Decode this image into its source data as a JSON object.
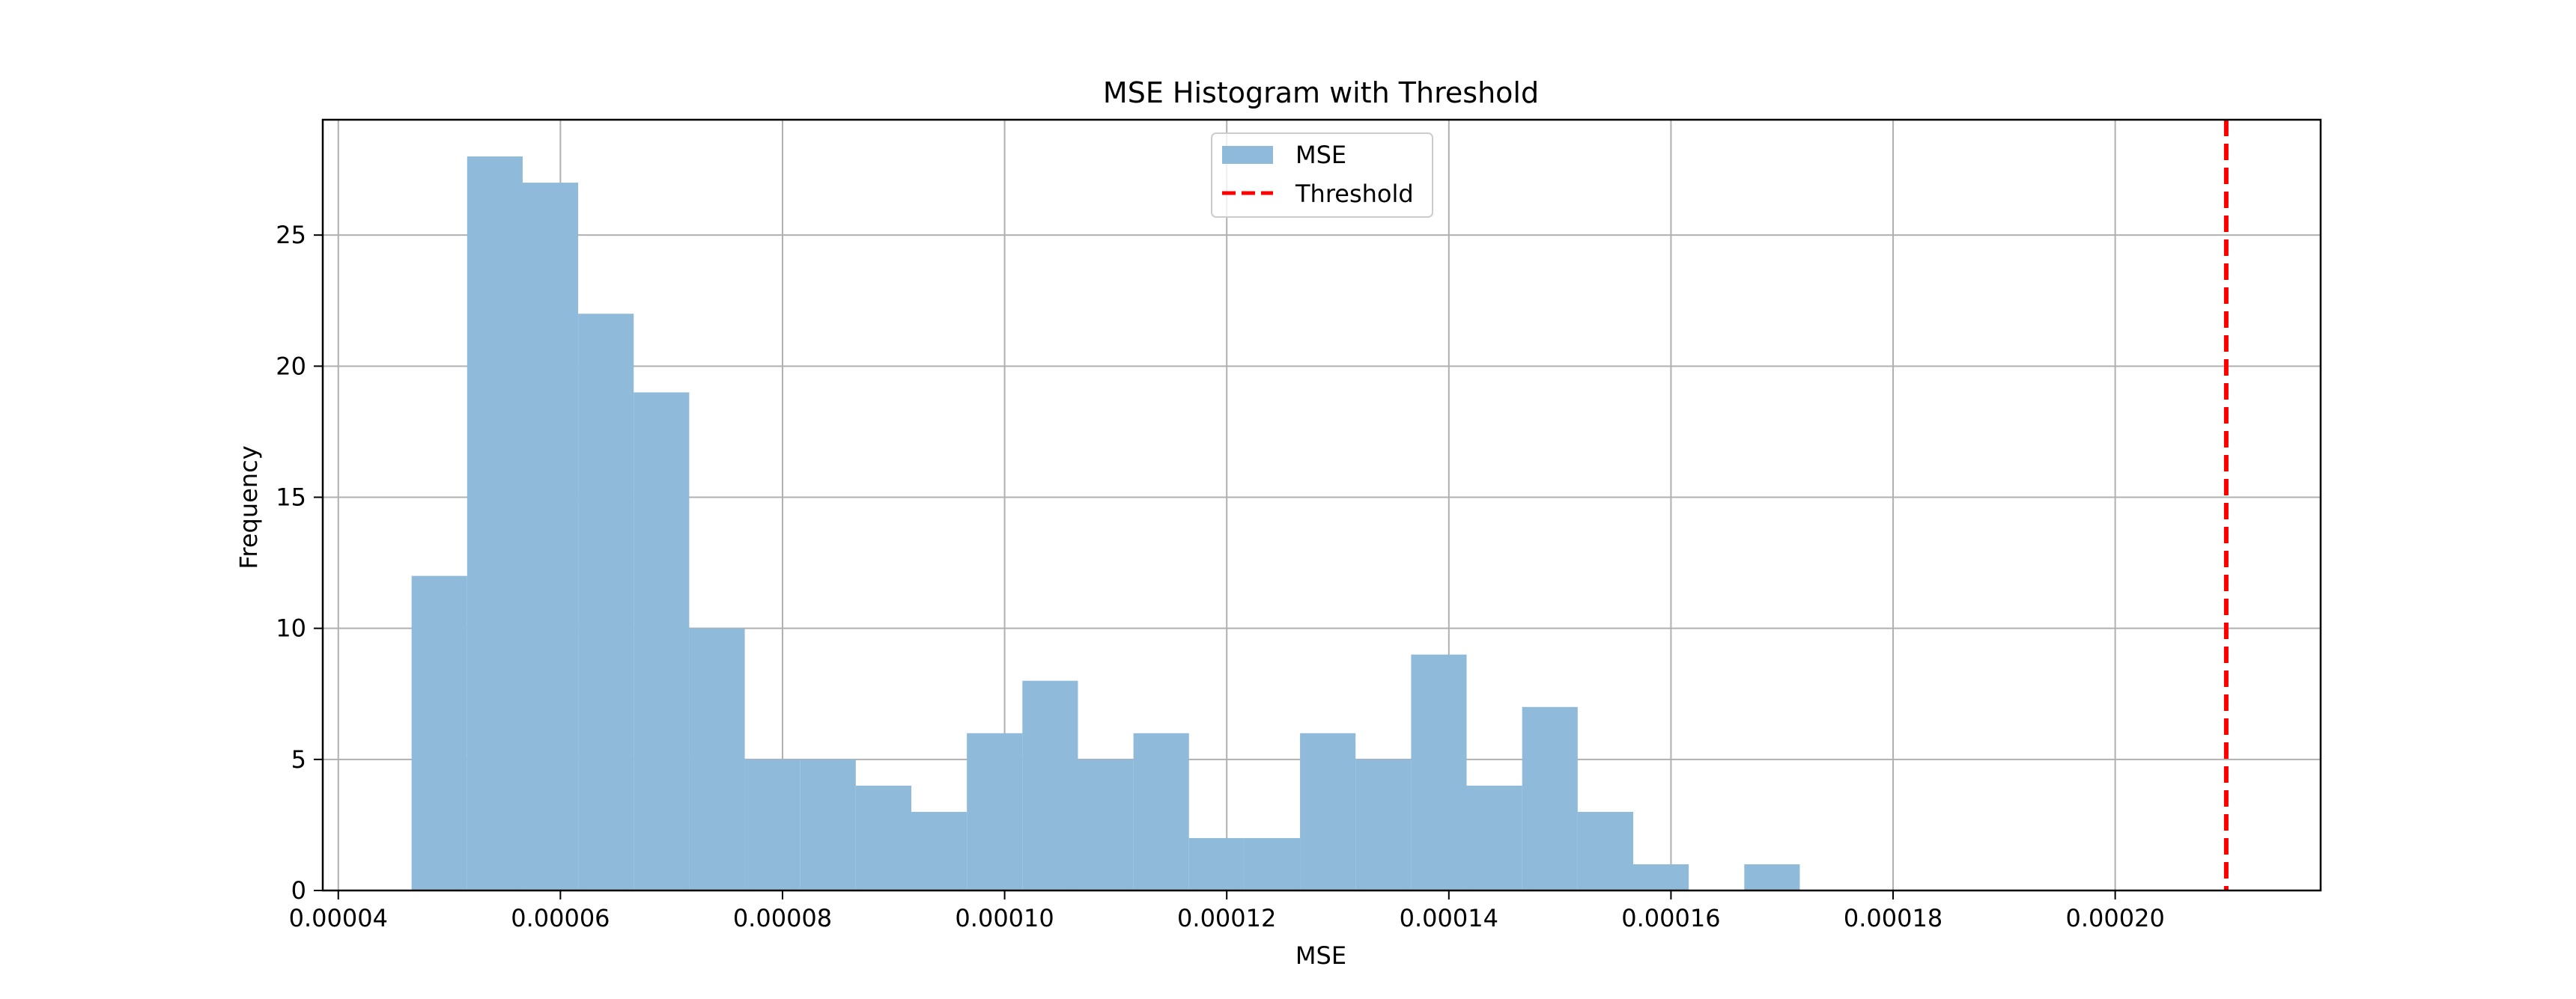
{
  "chart_data": {
    "type": "bar",
    "title": "MSE Histogram with Threshold",
    "xlabel": "MSE",
    "ylabel": "Frequency",
    "xlim": [
      3.86e-05,
      0.0002185
    ],
    "ylim": [
      0,
      29.4
    ],
    "grid": true,
    "legend_position": "upper center",
    "x_ticks": [
      {
        "value": 4e-05,
        "label": "0.00004"
      },
      {
        "value": 6e-05,
        "label": "0.00006"
      },
      {
        "value": 8e-05,
        "label": "0.00008"
      },
      {
        "value": 0.0001,
        "label": "0.00010"
      },
      {
        "value": 0.00012,
        "label": "0.00012"
      },
      {
        "value": 0.00014,
        "label": "0.00014"
      },
      {
        "value": 0.00016,
        "label": "0.00016"
      },
      {
        "value": 0.00018,
        "label": "0.00018"
      },
      {
        "value": 0.0002,
        "label": "0.00020"
      }
    ],
    "y_ticks": [
      {
        "value": 0,
        "label": "0"
      },
      {
        "value": 5,
        "label": "5"
      },
      {
        "value": 10,
        "label": "10"
      },
      {
        "value": 15,
        "label": "15"
      },
      {
        "value": 20,
        "label": "20"
      },
      {
        "value": 25,
        "label": "25"
      }
    ],
    "bin_edges": [
      4.66e-05,
      5.16e-05,
      5.66e-05,
      6.16e-05,
      6.66e-05,
      7.16e-05,
      7.66e-05,
      8.16e-05,
      8.66e-05,
      9.16e-05,
      9.66e-05,
      0.0001016,
      0.0001066,
      0.0001116,
      0.0001166,
      0.0001216,
      0.0001266,
      0.0001316,
      0.0001366,
      0.0001416,
      0.0001466,
      0.0001516,
      0.0001566,
      0.0001616,
      0.0001666,
      0.0001716
    ],
    "series": [
      {
        "name": "MSE",
        "type": "histogram",
        "color": "#8fbad9",
        "counts": [
          12,
          28,
          27,
          22,
          19,
          10,
          5,
          5,
          4,
          3,
          6,
          8,
          5,
          6,
          2,
          2,
          6,
          5,
          9,
          4,
          7,
          3,
          1,
          0,
          1
        ]
      },
      {
        "name": "Threshold",
        "type": "vline",
        "color": "#ff0000",
        "x": 0.00021
      }
    ]
  }
}
